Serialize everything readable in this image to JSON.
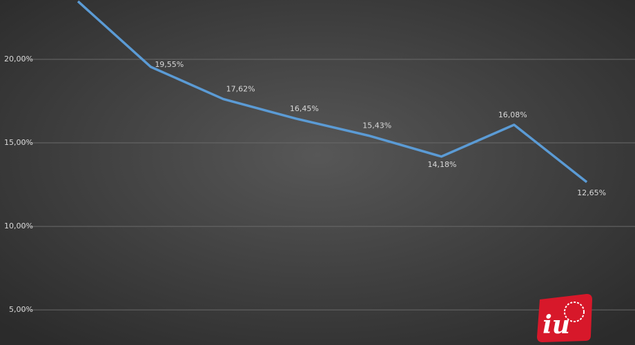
{
  "chart_data": {
    "type": "line",
    "categories": [
      null,
      null,
      null,
      null,
      null,
      null,
      null,
      null
    ],
    "values": [
      23.47,
      19.55,
      17.62,
      16.45,
      15.43,
      14.18,
      16.08,
      12.65
    ],
    "value_labels": [
      null,
      "19,55%",
      "17,62%",
      "16,45%",
      "15,43%",
      "14,18%",
      "16,08%",
      "12,65%"
    ],
    "color": "#5b9bd5",
    "ylim": [
      2.9,
      23.55
    ],
    "yticks": [
      {
        "value": 5,
        "label": "5,00%"
      },
      {
        "value": 10,
        "label": "10,00%"
      },
      {
        "value": 15,
        "label": "15,00%"
      },
      {
        "value": 20,
        "label": "20,00%"
      }
    ],
    "grid": true
  },
  "logo": "iu"
}
